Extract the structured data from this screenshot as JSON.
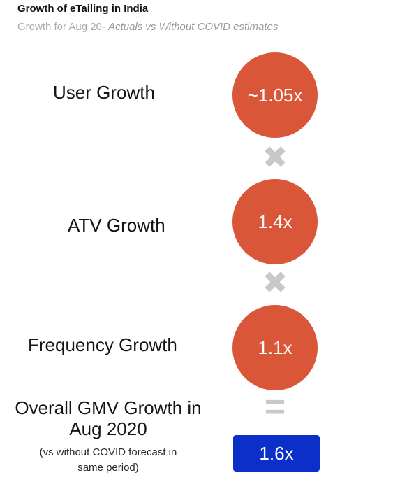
{
  "header": {
    "title": "Growth of eTailing in India",
    "subtitle_prefix": "Growth for Aug 20-",
    "subtitle_italic": "Actuals vs Without COVID estimates"
  },
  "rows": [
    {
      "label": "User Growth",
      "value": "~1.05x"
    },
    {
      "label": "ATV Growth",
      "value": "1.4x"
    },
    {
      "label": "Frequency Growth",
      "value": "1.1x"
    }
  ],
  "operators": {
    "multiply": "✖",
    "equals": "="
  },
  "overall": {
    "title_line1": "Overall GMV Growth in",
    "title_line2": "Aug 2020",
    "note_line1": "(vs without COVID forecast in",
    "note_line2": "same period)",
    "value": "1.6x"
  },
  "colors": {
    "bubble": "#d95638",
    "result_box": "#0b2fc8",
    "operator": "#c8c8c8"
  }
}
